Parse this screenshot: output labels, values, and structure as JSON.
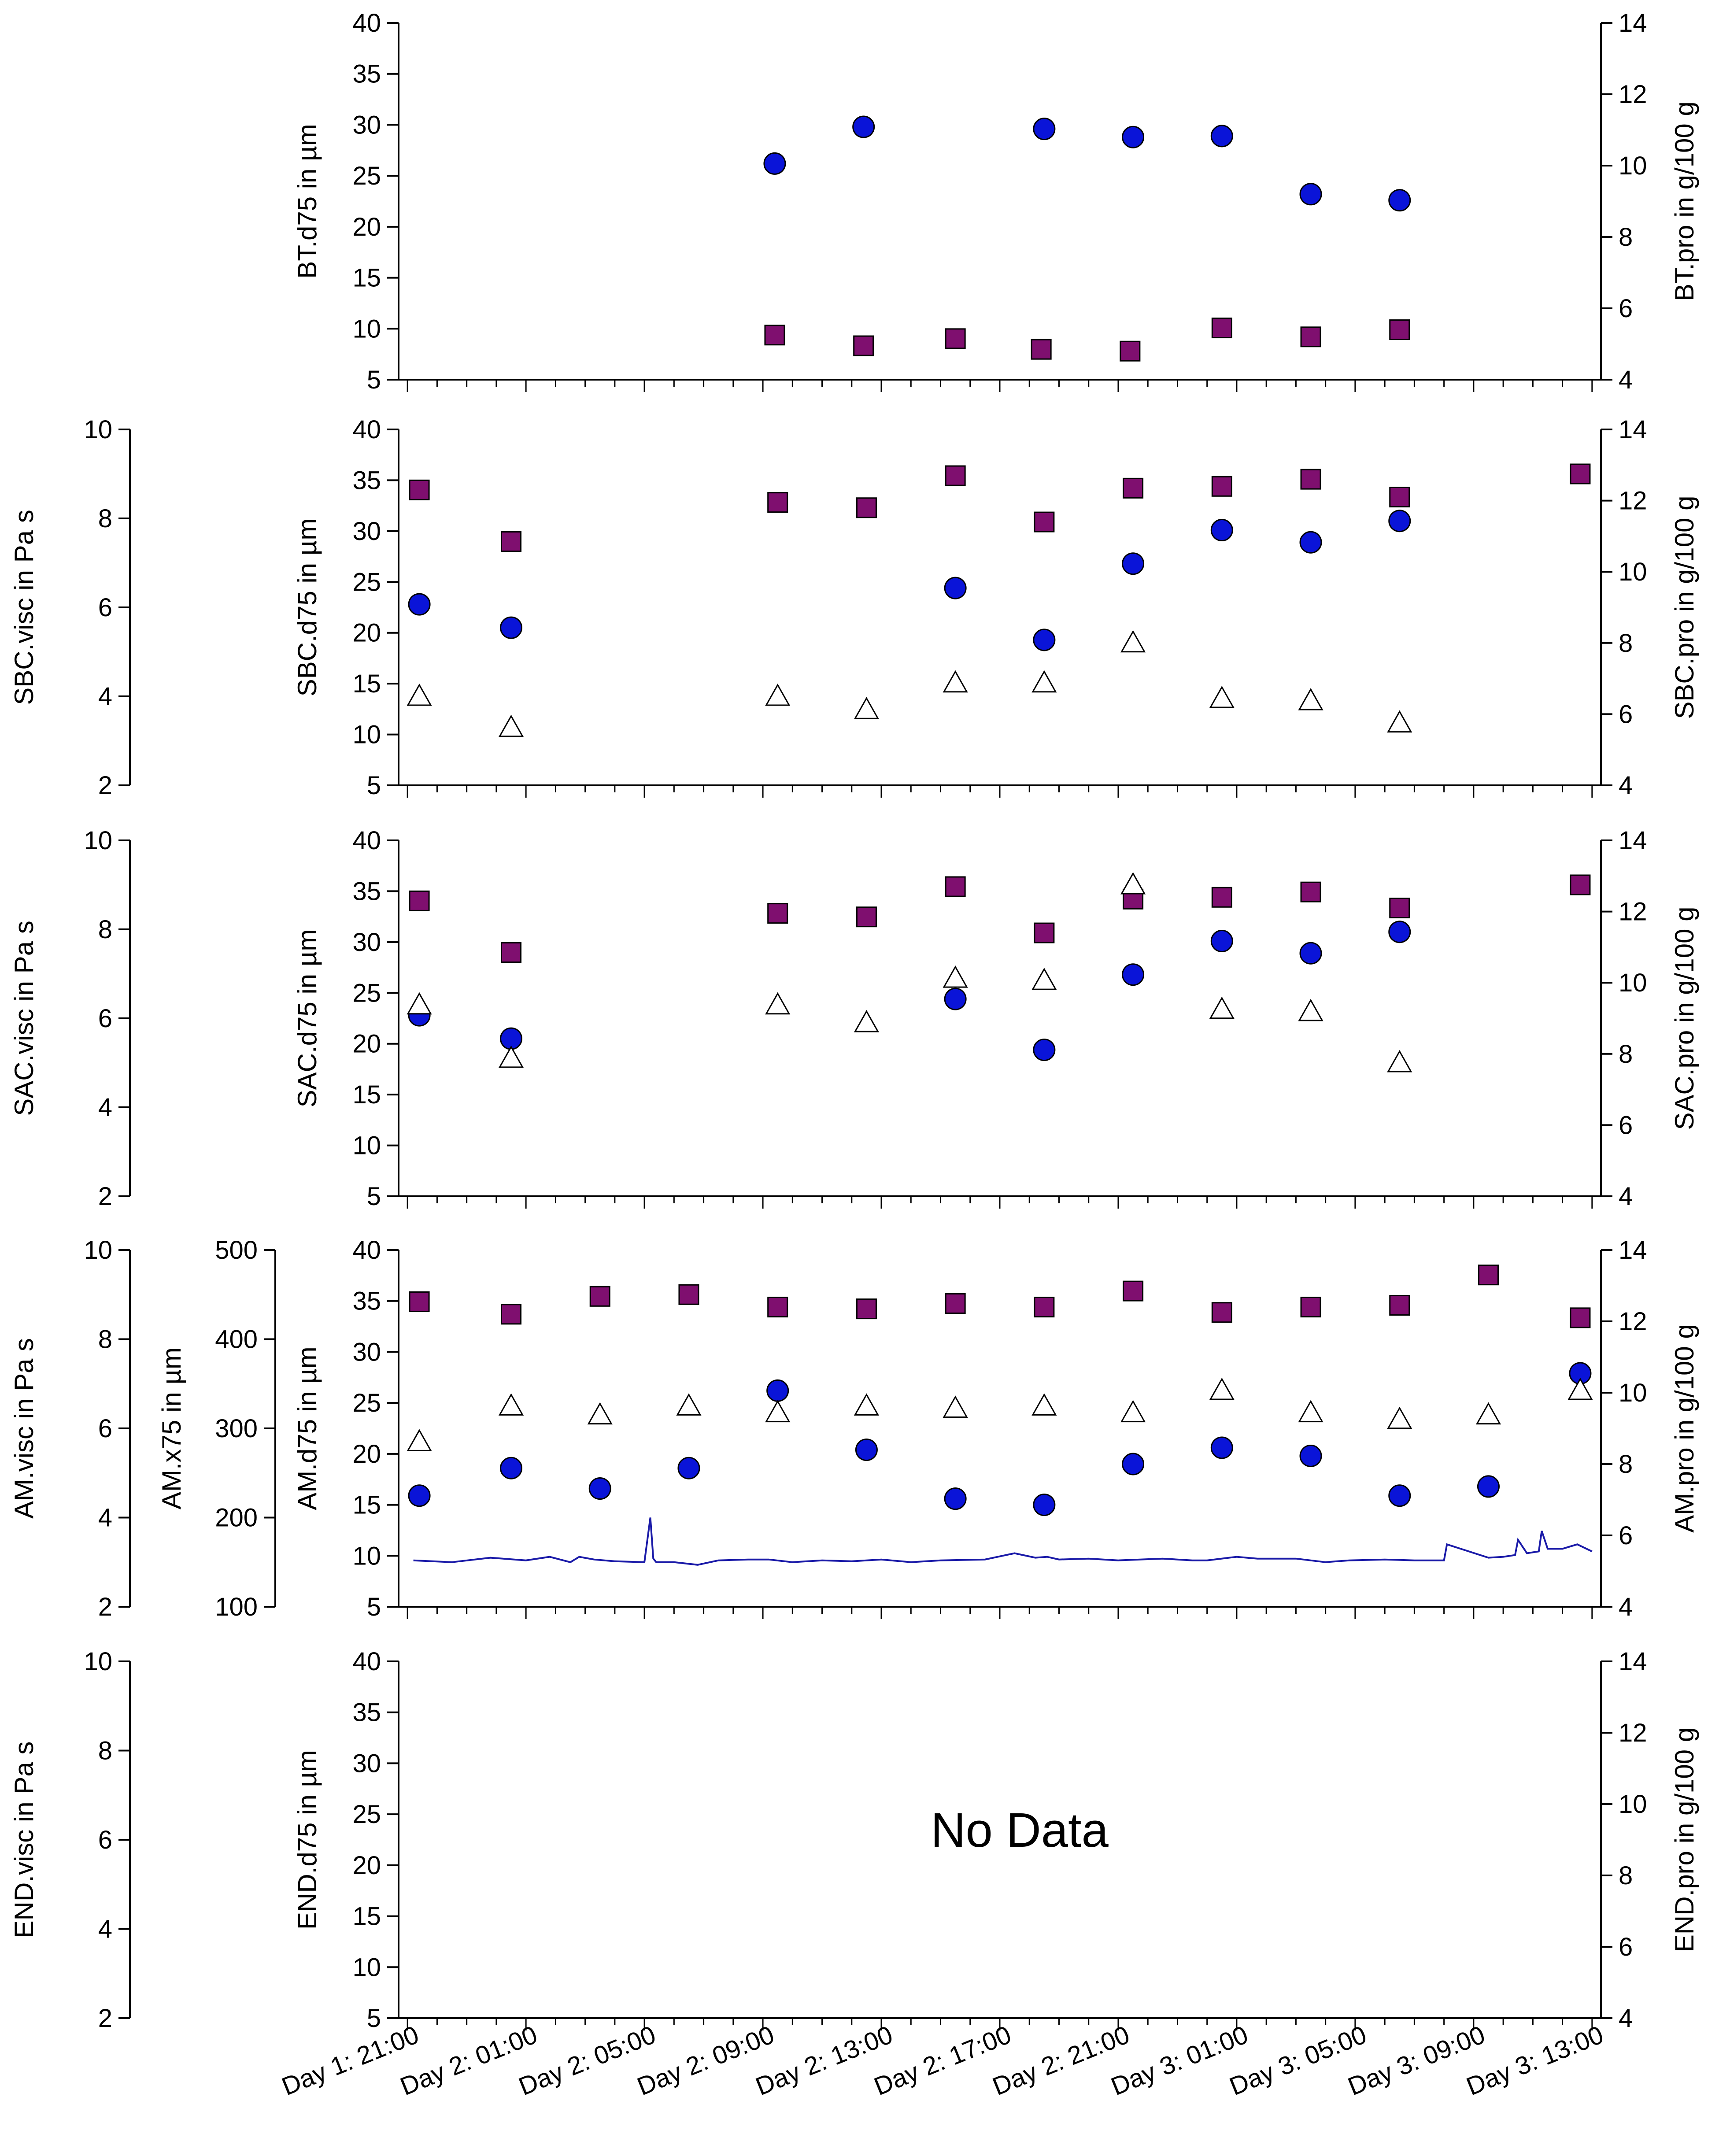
{
  "colors": {
    "square": "#7f0f6f",
    "circle": "#0a14d8",
    "triangle": "#ffffff",
    "trace": "#1a1aa8",
    "axis": "#000000"
  },
  "chart_data": {
    "type": "scatter",
    "x_tick_labels": [
      "Day 1: 21:00",
      "Day 2: 01:00",
      "Day 2: 05:00",
      "Day 2: 09:00",
      "Day 2: 13:00",
      "Day 2: 17:00",
      "Day 2: 21:00",
      "Day 3: 01:00",
      "Day 3: 05:00",
      "Day 3: 09:00",
      "Day 3: 13:00"
    ],
    "x_range_hours": [
      -0.3,
      40.3
    ],
    "panels": [
      {
        "id": "bt",
        "axes": [
          {
            "label": "BT.d75 in µm",
            "side": "left",
            "range": [
              5,
              40
            ],
            "ticks": [
              5,
              10,
              15,
              20,
              25,
              30,
              35,
              40
            ]
          },
          {
            "label": "BT.pro in g/100 g",
            "side": "right",
            "range": [
              4,
              14
            ],
            "ticks": [
              4,
              6,
              8,
              10,
              12,
              14
            ]
          }
        ],
        "series": [
          {
            "name": "d75",
            "marker": "circle",
            "axis": 0,
            "x": [
              12.4,
              15.4,
              21.5,
              24.5,
              27.5,
              30.5,
              33.5
            ],
            "y": [
              26.2,
              29.8,
              29.6,
              28.8,
              28.9,
              23.2,
              22.6
            ]
          },
          {
            "name": "pro",
            "marker": "square",
            "axis": 1,
            "x": [
              12.4,
              15.4,
              18.5,
              21.4,
              24.4,
              27.5,
              30.5,
              33.5
            ],
            "y": [
              5.25,
              4.95,
              5.15,
              4.85,
              4.8,
              5.45,
              5.2,
              5.4
            ]
          }
        ]
      },
      {
        "id": "sbc",
        "axes": [
          {
            "label": "SBC.visc in Pa s",
            "side": "outer",
            "range": [
              2,
              10
            ],
            "ticks": [
              2,
              4,
              6,
              8,
              10
            ]
          },
          {
            "label": "SBC.d75 in µm",
            "side": "left",
            "range": [
              5,
              40
            ],
            "ticks": [
              5,
              10,
              15,
              20,
              25,
              30,
              35,
              40
            ]
          },
          {
            "label": "SBC.pro in g/100 g",
            "side": "right",
            "range": [
              4,
              14
            ],
            "ticks": [
              4,
              6,
              8,
              10,
              12,
              14
            ]
          }
        ],
        "series": [
          {
            "name": "pro",
            "marker": "square",
            "axis": 2,
            "x": [
              0.4,
              3.5,
              12.5,
              15.5,
              18.5,
              21.5,
              24.5,
              27.5,
              30.5,
              33.5,
              39.6
            ],
            "y": [
              12.3,
              10.85,
              11.95,
              11.8,
              12.7,
              11.4,
              12.35,
              12.4,
              12.6,
              12.1,
              12.75
            ]
          },
          {
            "name": "d75",
            "marker": "circle",
            "axis": 1,
            "x": [
              0.4,
              3.5,
              18.5,
              21.5,
              24.5,
              27.5,
              30.5,
              33.5
            ],
            "y": [
              22.8,
              20.5,
              24.4,
              19.3,
              26.8,
              30.1,
              28.9,
              31.0
            ]
          },
          {
            "name": "visc",
            "marker": "triangle",
            "axis": 0,
            "x": [
              0.4,
              3.5,
              12.5,
              15.5,
              18.5,
              21.5,
              24.5,
              27.5,
              30.5,
              33.5
            ],
            "y": [
              4.0,
              3.3,
              4.0,
              3.7,
              4.3,
              4.3,
              5.2,
              3.95,
              3.9,
              3.4
            ]
          }
        ]
      },
      {
        "id": "sac",
        "axes": [
          {
            "label": "SAC.visc in Pa s",
            "side": "outer",
            "range": [
              2,
              10
            ],
            "ticks": [
              2,
              4,
              6,
              8,
              10
            ]
          },
          {
            "label": "SAC.d75 in µm",
            "side": "left",
            "range": [
              5,
              40
            ],
            "ticks": [
              5,
              10,
              15,
              20,
              25,
              30,
              35,
              40
            ]
          },
          {
            "label": "SAC.pro in g/100 g",
            "side": "right",
            "range": [
              4,
              14
            ],
            "ticks": [
              4,
              6,
              8,
              10,
              12,
              14
            ]
          }
        ],
        "series": [
          {
            "name": "pro",
            "marker": "square",
            "axis": 2,
            "x": [
              0.4,
              3.5,
              12.5,
              15.5,
              18.5,
              21.5,
              24.5,
              27.5,
              30.5,
              33.5,
              39.6
            ],
            "y": [
              12.3,
              10.85,
              11.95,
              11.85,
              12.7,
              11.4,
              12.35,
              12.4,
              12.55,
              12.1,
              12.75
            ]
          },
          {
            "name": "d75",
            "marker": "circle",
            "axis": 1,
            "x": [
              0.4,
              3.5,
              18.5,
              21.5,
              24.5,
              27.5,
              30.5,
              33.5
            ],
            "y": [
              22.8,
              20.5,
              24.4,
              19.4,
              26.8,
              30.1,
              28.9,
              31.0
            ]
          },
          {
            "name": "visc",
            "marker": "triangle",
            "axis": 0,
            "x": [
              0.4,
              3.5,
              12.5,
              15.5,
              18.5,
              21.5,
              24.5,
              27.5,
              30.5,
              33.5
            ],
            "y": [
              6.3,
              5.1,
              6.3,
              5.9,
              6.9,
              6.85,
              9.0,
              6.2,
              6.15,
              5.0
            ]
          }
        ]
      },
      {
        "id": "am",
        "axes": [
          {
            "label": "AM.visc in Pa s",
            "side": "outer",
            "range": [
              2,
              10
            ],
            "ticks": [
              2,
              4,
              6,
              8,
              10
            ]
          },
          {
            "label": "AM.x75 in µm",
            "side": "middle",
            "range": [
              100,
              500
            ],
            "ticks": [
              100,
              200,
              300,
              400,
              500
            ]
          },
          {
            "label": "AM.d75 in µm",
            "side": "left",
            "range": [
              5,
              40
            ],
            "ticks": [
              5,
              10,
              15,
              20,
              25,
              30,
              35,
              40
            ]
          },
          {
            "label": "AM.pro in g/100 g",
            "side": "right",
            "range": [
              4,
              14
            ],
            "ticks": [
              4,
              6,
              8,
              10,
              12,
              14
            ]
          }
        ],
        "series": [
          {
            "name": "pro",
            "marker": "square",
            "axis": 3,
            "x": [
              0.4,
              3.5,
              6.5,
              9.5,
              12.5,
              15.5,
              18.5,
              21.5,
              24.5,
              27.5,
              30.5,
              33.5,
              36.5,
              39.6
            ],
            "y": [
              12.55,
              12.2,
              12.7,
              12.75,
              12.4,
              12.35,
              12.5,
              12.4,
              12.85,
              12.25,
              12.4,
              12.45,
              13.3,
              12.1
            ]
          },
          {
            "name": "d75",
            "marker": "circle",
            "axis": 2,
            "x": [
              0.4,
              3.5,
              6.5,
              9.5,
              12.5,
              15.5,
              18.5,
              21.5,
              24.5,
              27.5,
              30.5,
              33.5,
              36.5,
              39.6
            ],
            "y": [
              15.9,
              18.6,
              16.6,
              18.6,
              26.2,
              20.4,
              15.6,
              15.0,
              19.0,
              20.6,
              19.8,
              15.9,
              16.8,
              27.9
            ]
          },
          {
            "name": "visc",
            "marker": "triangle",
            "axis": 0,
            "x": [
              0.4,
              3.5,
              6.5,
              9.5,
              12.5,
              15.5,
              18.5,
              21.5,
              24.5,
              27.5,
              30.5,
              33.5,
              36.5,
              39.6
            ],
            "y": [
              5.7,
              6.5,
              6.3,
              6.5,
              6.35,
              6.5,
              6.45,
              6.5,
              6.35,
              6.85,
              6.35,
              6.2,
              6.3,
              6.85
            ]
          },
          {
            "name": "x75 trace",
            "marker": "line",
            "axis": 1,
            "x": [
              0.2,
              1.5,
              2.8,
              4.0,
              4.8,
              5.5,
              5.8,
              6.3,
              7.0,
              8.0,
              8.2,
              8.3,
              8.4,
              9.0,
              9.8,
              10.5,
              11.5,
              12.2,
              13.0,
              14.0,
              15.0,
              16.0,
              17.0,
              18.0,
              19.5,
              20.5,
              21.2,
              21.6,
              22.0,
              23.0,
              24.0,
              25.5,
              26.5,
              27.0,
              28.0,
              28.7,
              30.0,
              31.0,
              31.8,
              33.0,
              34.0,
              35.0,
              35.1,
              36.5,
              37.0,
              37.4,
              37.5,
              37.8,
              38.2,
              38.3,
              38.5,
              39.0,
              39.5,
              40.0
            ],
            "y": [
              152,
              150,
              155,
              152,
              156,
              150,
              156,
              153,
              151,
              150,
              200,
              154,
              150,
              150,
              147,
              152,
              153,
              153,
              150,
              152,
              151,
              153,
              150,
              152,
              153,
              160,
              155,
              156,
              153,
              154,
              152,
              154,
              152,
              152,
              156,
              154,
              154,
              150,
              152,
              153,
              152,
              152,
              170,
              155,
              156,
              158,
              175,
              160,
              162,
              185,
              165,
              165,
              170,
              162
            ]
          }
        ]
      },
      {
        "id": "end",
        "axes": [
          {
            "label": "END.visc in Pa s",
            "side": "outer",
            "range": [
              2,
              10
            ],
            "ticks": [
              2,
              4,
              6,
              8,
              10
            ]
          },
          {
            "label": "END.d75 in µm",
            "side": "left",
            "range": [
              5,
              40
            ],
            "ticks": [
              5,
              10,
              15,
              20,
              25,
              30,
              35,
              40
            ]
          },
          {
            "label": "END.pro in g/100 g",
            "side": "right",
            "range": [
              4,
              14
            ],
            "ticks": [
              4,
              6,
              8,
              10,
              12,
              14
            ]
          }
        ],
        "series": [],
        "annotation": "No Data"
      }
    ]
  }
}
